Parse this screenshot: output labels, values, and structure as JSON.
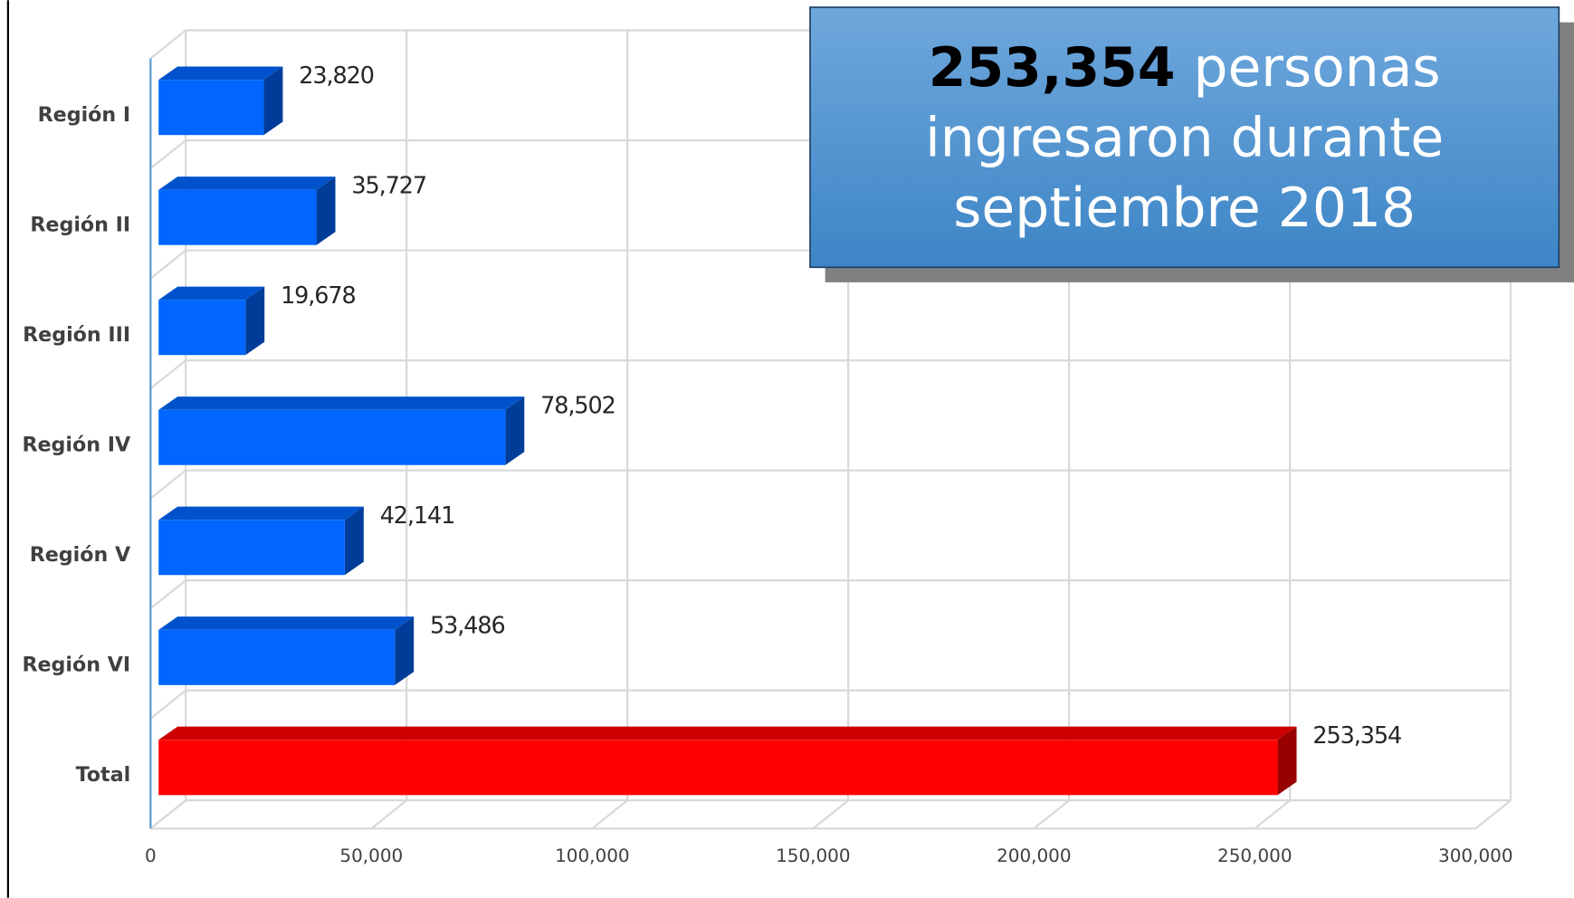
{
  "chart_data": {
    "type": "bar",
    "orientation": "horizontal",
    "annotation": {
      "highlight": "253,354",
      "lines": [
        "personas",
        "ingresaron durante",
        "septiembre 2018"
      ]
    },
    "categories": [
      "Región I",
      "Región II",
      "Región III",
      "Región IV",
      "Región V",
      "Región VI",
      "Total"
    ],
    "values": [
      23820,
      35727,
      19678,
      78502,
      42141,
      53486,
      253354
    ],
    "value_labels": [
      "23,820",
      "35,727",
      "19,678",
      "78,502",
      "42,141",
      "53,486",
      "253,354"
    ],
    "colors": [
      "#0066ff",
      "#0066ff",
      "#0066ff",
      "#0066ff",
      "#0066ff",
      "#0066ff",
      "#ff0000"
    ],
    "xlim": [
      0,
      300000
    ],
    "xticks": [
      0,
      {
        "value": 50000,
        "label": "50,000"
      },
      {
        "value": 100000,
        "label": "100,000"
      },
      {
        "value": 150000,
        "label": "150,000"
      },
      {
        "value": 200000,
        "label": "200,000"
      },
      {
        "value": 250000,
        "label": "250,000"
      },
      {
        "value": 300000,
        "label": "300,000"
      }
    ],
    "grid": true
  }
}
